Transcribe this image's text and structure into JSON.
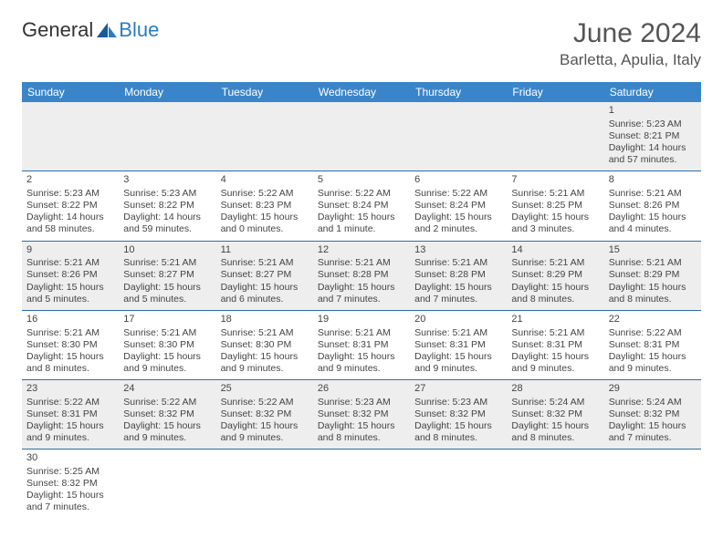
{
  "brand": {
    "part1": "General",
    "part2": "Blue"
  },
  "title": "June 2024",
  "location": "Barletta, Apulia, Italy",
  "colors": {
    "header_bg": "#3a85c9",
    "row_border": "#2b6fa8",
    "alt_row_bg": "#eeeeee",
    "text": "#444444",
    "brand_blue": "#2b7cc4"
  },
  "day_headers": [
    "Sunday",
    "Monday",
    "Tuesday",
    "Wednesday",
    "Thursday",
    "Friday",
    "Saturday"
  ],
  "weeks": [
    [
      null,
      null,
      null,
      null,
      null,
      null,
      {
        "n": "1",
        "sr": "Sunrise: 5:23 AM",
        "ss": "Sunset: 8:21 PM",
        "dl": "Daylight: 14 hours and 57 minutes."
      }
    ],
    [
      {
        "n": "2",
        "sr": "Sunrise: 5:23 AM",
        "ss": "Sunset: 8:22 PM",
        "dl": "Daylight: 14 hours and 58 minutes."
      },
      {
        "n": "3",
        "sr": "Sunrise: 5:23 AM",
        "ss": "Sunset: 8:22 PM",
        "dl": "Daylight: 14 hours and 59 minutes."
      },
      {
        "n": "4",
        "sr": "Sunrise: 5:22 AM",
        "ss": "Sunset: 8:23 PM",
        "dl": "Daylight: 15 hours and 0 minutes."
      },
      {
        "n": "5",
        "sr": "Sunrise: 5:22 AM",
        "ss": "Sunset: 8:24 PM",
        "dl": "Daylight: 15 hours and 1 minute."
      },
      {
        "n": "6",
        "sr": "Sunrise: 5:22 AM",
        "ss": "Sunset: 8:24 PM",
        "dl": "Daylight: 15 hours and 2 minutes."
      },
      {
        "n": "7",
        "sr": "Sunrise: 5:21 AM",
        "ss": "Sunset: 8:25 PM",
        "dl": "Daylight: 15 hours and 3 minutes."
      },
      {
        "n": "8",
        "sr": "Sunrise: 5:21 AM",
        "ss": "Sunset: 8:26 PM",
        "dl": "Daylight: 15 hours and 4 minutes."
      }
    ],
    [
      {
        "n": "9",
        "sr": "Sunrise: 5:21 AM",
        "ss": "Sunset: 8:26 PM",
        "dl": "Daylight: 15 hours and 5 minutes."
      },
      {
        "n": "10",
        "sr": "Sunrise: 5:21 AM",
        "ss": "Sunset: 8:27 PM",
        "dl": "Daylight: 15 hours and 5 minutes."
      },
      {
        "n": "11",
        "sr": "Sunrise: 5:21 AM",
        "ss": "Sunset: 8:27 PM",
        "dl": "Daylight: 15 hours and 6 minutes."
      },
      {
        "n": "12",
        "sr": "Sunrise: 5:21 AM",
        "ss": "Sunset: 8:28 PM",
        "dl": "Daylight: 15 hours and 7 minutes."
      },
      {
        "n": "13",
        "sr": "Sunrise: 5:21 AM",
        "ss": "Sunset: 8:28 PM",
        "dl": "Daylight: 15 hours and 7 minutes."
      },
      {
        "n": "14",
        "sr": "Sunrise: 5:21 AM",
        "ss": "Sunset: 8:29 PM",
        "dl": "Daylight: 15 hours and 8 minutes."
      },
      {
        "n": "15",
        "sr": "Sunrise: 5:21 AM",
        "ss": "Sunset: 8:29 PM",
        "dl": "Daylight: 15 hours and 8 minutes."
      }
    ],
    [
      {
        "n": "16",
        "sr": "Sunrise: 5:21 AM",
        "ss": "Sunset: 8:30 PM",
        "dl": "Daylight: 15 hours and 8 minutes."
      },
      {
        "n": "17",
        "sr": "Sunrise: 5:21 AM",
        "ss": "Sunset: 8:30 PM",
        "dl": "Daylight: 15 hours and 9 minutes."
      },
      {
        "n": "18",
        "sr": "Sunrise: 5:21 AM",
        "ss": "Sunset: 8:30 PM",
        "dl": "Daylight: 15 hours and 9 minutes."
      },
      {
        "n": "19",
        "sr": "Sunrise: 5:21 AM",
        "ss": "Sunset: 8:31 PM",
        "dl": "Daylight: 15 hours and 9 minutes."
      },
      {
        "n": "20",
        "sr": "Sunrise: 5:21 AM",
        "ss": "Sunset: 8:31 PM",
        "dl": "Daylight: 15 hours and 9 minutes."
      },
      {
        "n": "21",
        "sr": "Sunrise: 5:21 AM",
        "ss": "Sunset: 8:31 PM",
        "dl": "Daylight: 15 hours and 9 minutes."
      },
      {
        "n": "22",
        "sr": "Sunrise: 5:22 AM",
        "ss": "Sunset: 8:31 PM",
        "dl": "Daylight: 15 hours and 9 minutes."
      }
    ],
    [
      {
        "n": "23",
        "sr": "Sunrise: 5:22 AM",
        "ss": "Sunset: 8:31 PM",
        "dl": "Daylight: 15 hours and 9 minutes."
      },
      {
        "n": "24",
        "sr": "Sunrise: 5:22 AM",
        "ss": "Sunset: 8:32 PM",
        "dl": "Daylight: 15 hours and 9 minutes."
      },
      {
        "n": "25",
        "sr": "Sunrise: 5:22 AM",
        "ss": "Sunset: 8:32 PM",
        "dl": "Daylight: 15 hours and 9 minutes."
      },
      {
        "n": "26",
        "sr": "Sunrise: 5:23 AM",
        "ss": "Sunset: 8:32 PM",
        "dl": "Daylight: 15 hours and 8 minutes."
      },
      {
        "n": "27",
        "sr": "Sunrise: 5:23 AM",
        "ss": "Sunset: 8:32 PM",
        "dl": "Daylight: 15 hours and 8 minutes."
      },
      {
        "n": "28",
        "sr": "Sunrise: 5:24 AM",
        "ss": "Sunset: 8:32 PM",
        "dl": "Daylight: 15 hours and 8 minutes."
      },
      {
        "n": "29",
        "sr": "Sunrise: 5:24 AM",
        "ss": "Sunset: 8:32 PM",
        "dl": "Daylight: 15 hours and 7 minutes."
      }
    ],
    [
      {
        "n": "30",
        "sr": "Sunrise: 5:25 AM",
        "ss": "Sunset: 8:32 PM",
        "dl": "Daylight: 15 hours and 7 minutes."
      },
      null,
      null,
      null,
      null,
      null,
      null
    ]
  ]
}
